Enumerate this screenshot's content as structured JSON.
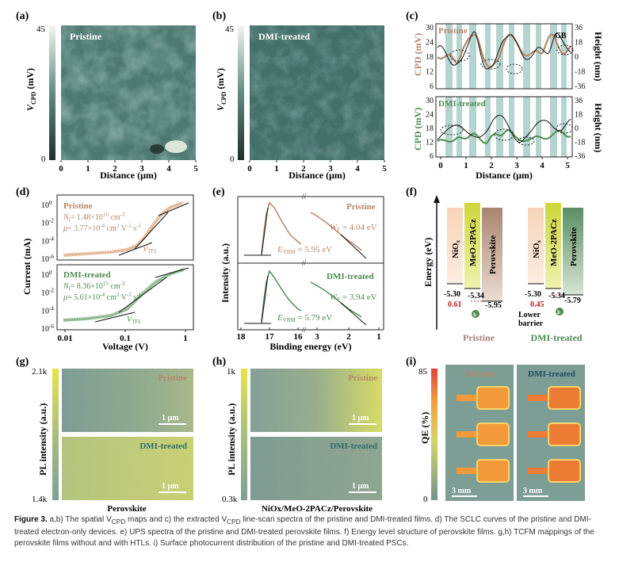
{
  "panels": {
    "a": {
      "label": "(a)",
      "sample": "Pristine",
      "cb_max": "45",
      "cb_min": "0",
      "cb_label_main": "V",
      "cb_label_sub": "CPD",
      "cb_label_unit": " (mV)",
      "xlabel": "Distance (μm)",
      "xticks": [
        "0",
        "1",
        "2",
        "3",
        "4",
        "5"
      ]
    },
    "b": {
      "label": "(b)",
      "sample": "DMI-treated",
      "cb_max": "45",
      "cb_min": "0",
      "cb_label_main": "V",
      "cb_label_sub": "CPD",
      "cb_label_unit": " (mV)",
      "xlabel": "Distance (μm)",
      "xticks": [
        "0",
        "1",
        "2",
        "3",
        "4",
        "5"
      ]
    },
    "c": {
      "label": "(c)",
      "top_sample": "Pristine",
      "bottom_sample": "DMI-treated",
      "gb": "GB",
      "ylabel_left": "CPD (mV)",
      "ylabel_right": "Height (nm)",
      "xlabel": "Distance (μm)",
      "cpd_ticks": [
        "6",
        "12",
        "18",
        "24",
        "30"
      ],
      "height_ticks": [
        "-36",
        "-18",
        "0",
        "18",
        "36"
      ],
      "xticks": [
        "0",
        "1",
        "2",
        "3",
        "4",
        "5"
      ]
    },
    "d": {
      "label": "(d)",
      "ylabel": "Current (mA)",
      "xlabel": "Voltage (V)",
      "xticks": [
        "0.01",
        "0.1",
        "1"
      ],
      "yticks_main": [
        "10",
        "10",
        "10",
        "10"
      ],
      "yticks_exp": [
        "0",
        "-2",
        "-4",
        "-6"
      ],
      "pristine": {
        "name": "Pristine",
        "nt": "= 1.48×10",
        "nt_exp": "16",
        "nt_unit": " cm",
        "mu": "= 3.77×10",
        "mu_exp": "-4",
        "mu_unit": " cm",
        "vtfl": "V",
        "vtfl_sub": "TFL"
      },
      "dmi": {
        "name": "DMI-treated",
        "nt": "= 8.36×10",
        "nt_exp": "15",
        "nt_unit": " cm",
        "mu": "= 5.61×10",
        "mu_exp": "-4",
        "mu_unit": " cm",
        "vtfl": "V",
        "vtfl_sub": "TFL"
      }
    },
    "e": {
      "label": "(e)",
      "ylabel": "Intensity (a.u.)",
      "xlabel": "Binding energy (eV)",
      "xticks": [
        "18",
        "17",
        "16",
        "3",
        "2",
        "1"
      ],
      "pristine": {
        "name": "Pristine",
        "wf": "W",
        "wf_sub": "F",
        "wf_val": " = 4.04 eV",
        "evbm": "E",
        "evbm_sub": "VBM",
        "evbm_val": " = 5.95 eV"
      },
      "dmi": {
        "name": "DMI-treated",
        "wf": "W",
        "wf_sub": "F",
        "wf_val": " = 3.94 eV",
        "evbm": "E",
        "evbm_sub": "VBM",
        "evbm_val": " = 5.79 eV"
      }
    },
    "f": {
      "label": "(f)",
      "ylabel": "Energy (eV)",
      "layers": [
        "NiO",
        "MeO-2PACz",
        "Perovskite"
      ],
      "nio_sub": "x",
      "pristine": {
        "name": "Pristine",
        "nio": "-5.30",
        "meo": "-5.34",
        "pvk": "-5.95",
        "barrier": "0.61"
      },
      "dmi": {
        "name": "DMI-treated",
        "nio": "-5.30",
        "meo": "-5.34",
        "pvk": "-5.79",
        "barrier": "0.45",
        "note1": "Lower",
        "note2": "barrier"
      },
      "hole": "h"
    },
    "g": {
      "label": "(g)",
      "cb_max": "2.1k",
      "cb_min": "1.4k",
      "ylabel": "PL intensity (a.u.)",
      "top": "Pristine",
      "bottom": "DMI-treated",
      "scale": "1 μm",
      "xlabel": "Perovskite"
    },
    "h": {
      "label": "(h)",
      "cb_max": "1k",
      "cb_min": "0.3k",
      "ylabel": "PL intensity (a.u.)",
      "top": "Pristine",
      "bottom": "DMI-treated",
      "scale": "1 μm",
      "xlabel": "NiOx/MeO-2PACz/Perovskite"
    },
    "i": {
      "label": "(i)",
      "cb_max": "85",
      "cb_min": "0",
      "ylabel": "QE (%)",
      "left": "Pristine",
      "right": "DMI-treated",
      "scale": "3 mm"
    }
  },
  "caption": {
    "fig": "Figure 3.",
    "text": " a,b) The spatial V",
    "sub1": "CPD",
    "text2": " maps and c) the extracted V",
    "sub2": "CPD",
    "text3": " line-scan spectra of the pristine and DMI-treated films. d) The SCLC curves of the pristine and DMI-treated electron-only devices. e) UPS spectra of the pristine and DMI-treated perovskite films. f) Energy level structure of perovskite films. g,h) TCFM mappings of the perovskite films without and with HTLs. i) Surface photocurrent distribution of the pristine and DMI-treated PSCs."
  },
  "colors": {
    "pristine": "#b3876a",
    "dmi": "#4f8a53",
    "gb_band": "#a8ccc8",
    "map_dark": "#1f3b3a",
    "map_light": "#e6efe3"
  }
}
